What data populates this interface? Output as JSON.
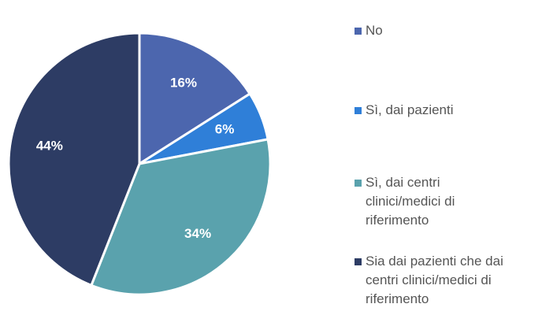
{
  "chart_data": {
    "type": "pie",
    "categories": [
      "No",
      "Sì, dai pazienti",
      "Sì, dai centri clinici/medici di riferimento",
      "Sia dai pazienti che dai centri clinici/medici di riferimento"
    ],
    "values": [
      16,
      6,
      34,
      44
    ],
    "value_labels": [
      "16%",
      "6%",
      "34%",
      "44%"
    ],
    "colors": [
      "#4c66ae",
      "#2f7fd8",
      "#5aa2ad",
      "#2d3c64"
    ],
    "legend": "right"
  }
}
